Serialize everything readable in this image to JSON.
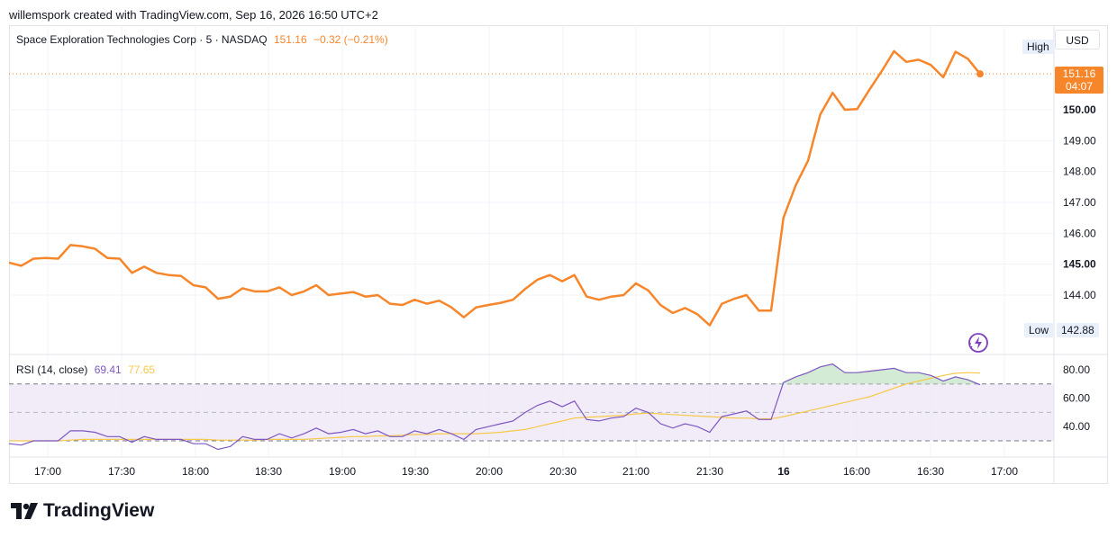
{
  "header": {
    "attribution": "willemspork created with TradingView.com, Sep 16, 2026 16:50 UTC+2"
  },
  "legend": {
    "symbol": "Space Exploration Technologies Corp · 5 · NASDAQ",
    "price": "151.16",
    "change": "−0.32 (−0.21%)"
  },
  "currency": "USD",
  "high_label": "High",
  "low_label": "Low",
  "low_value": "142.88",
  "price_tag": {
    "price": "151.16",
    "countdown": "04:07"
  },
  "rsi_legend": {
    "name": "RSI (14, close)",
    "rsi": "69.41",
    "ma": "77.65"
  },
  "brand": {
    "name": "TradingView",
    "icon": "tradingview-logo-icon"
  },
  "colors": {
    "price_line": "#f7862b",
    "rsi_line": "#7e57c2",
    "rsi_ma": "#f7c948",
    "rsi_band": "#ede7f6"
  },
  "chart_data": [
    {
      "type": "line",
      "series": [
        {
          "name": "Space Exploration Technologies Corp",
          "values": [
            145.05,
            144.95,
            145.18,
            145.2,
            145.18,
            145.62,
            145.58,
            145.5,
            145.2,
            145.18,
            144.72,
            144.92,
            144.72,
            144.65,
            144.62,
            144.32,
            144.25,
            143.88,
            143.95,
            144.22,
            144.12,
            144.12,
            144.25,
            144.0,
            144.12,
            144.32,
            144.0,
            144.05,
            144.1,
            143.95,
            144.0,
            143.72,
            143.68,
            143.85,
            143.72,
            143.82,
            143.6,
            143.28,
            143.6,
            143.68,
            143.75,
            143.85,
            144.2,
            144.5,
            144.65,
            144.45,
            144.65,
            143.95,
            143.85,
            143.95,
            144.0,
            144.38,
            144.15,
            143.68,
            143.42,
            143.58,
            143.38,
            143.02,
            143.72,
            143.88,
            144.0,
            143.5,
            143.5,
            146.5,
            147.55,
            148.35,
            149.85,
            150.55,
            150.0,
            150.02,
            150.65,
            151.25,
            151.9,
            151.55,
            151.62,
            151.45,
            151.05,
            151.88,
            151.65,
            151.16
          ]
        }
      ],
      "x_ticks": [
        "17:00",
        "17:30",
        "18:00",
        "18:30",
        "19:00",
        "19:30",
        "20:00",
        "20:30",
        "21:00",
        "21:30",
        "16",
        "16:00",
        "16:30",
        "17:00"
      ],
      "y_ticks": [
        "144.00",
        "145.00",
        "146.00",
        "147.00",
        "148.00",
        "149.00",
        "150.00"
      ],
      "ylim": [
        142.5,
        152.5
      ],
      "grid": true
    },
    {
      "type": "line",
      "series": [
        {
          "name": "RSI",
          "values": [
            28,
            27,
            30,
            30,
            30,
            37,
            37,
            36,
            33,
            33,
            29,
            33,
            31,
            31,
            31,
            28,
            28,
            24,
            26,
            33,
            31,
            31,
            35,
            32,
            35,
            39,
            35,
            36,
            38,
            35,
            37,
            33,
            33,
            37,
            35,
            38,
            35,
            31,
            38,
            40,
            42,
            44,
            50,
            55,
            58,
            54,
            58,
            45,
            44,
            46,
            47,
            53,
            50,
            42,
            39,
            42,
            40,
            36,
            47,
            49,
            51,
            45,
            45,
            71,
            75,
            78,
            82,
            84,
            78,
            78,
            79,
            80,
            81,
            78,
            78,
            76,
            72,
            75,
            73,
            69.41
          ]
        },
        {
          "name": "RSI-based MA",
          "values": [
            30,
            30,
            30,
            30,
            30,
            30.5,
            31,
            31,
            31,
            31,
            31,
            31,
            31,
            31,
            31,
            31,
            31,
            30.5,
            30.5,
            30.5,
            30.5,
            31,
            31,
            31,
            31,
            31.5,
            32,
            32.5,
            33,
            33,
            33.5,
            33.5,
            34,
            34.5,
            34.5,
            35,
            35,
            35,
            35,
            35.5,
            36,
            37,
            38,
            40,
            42,
            44,
            46,
            46.5,
            47,
            47.5,
            48,
            49,
            49.5,
            49,
            48.5,
            48,
            47.5,
            47,
            46.5,
            46,
            46,
            45.5,
            45.5,
            47,
            49,
            51,
            53,
            55,
            57,
            59,
            61,
            64,
            67,
            70,
            72,
            74,
            76,
            77.5,
            78,
            77.65
          ]
        }
      ],
      "y_ticks": [
        "40.00",
        "60.00",
        "80.00"
      ],
      "ylim": [
        10,
        100
      ],
      "bands": [
        70,
        50,
        30
      ]
    }
  ]
}
